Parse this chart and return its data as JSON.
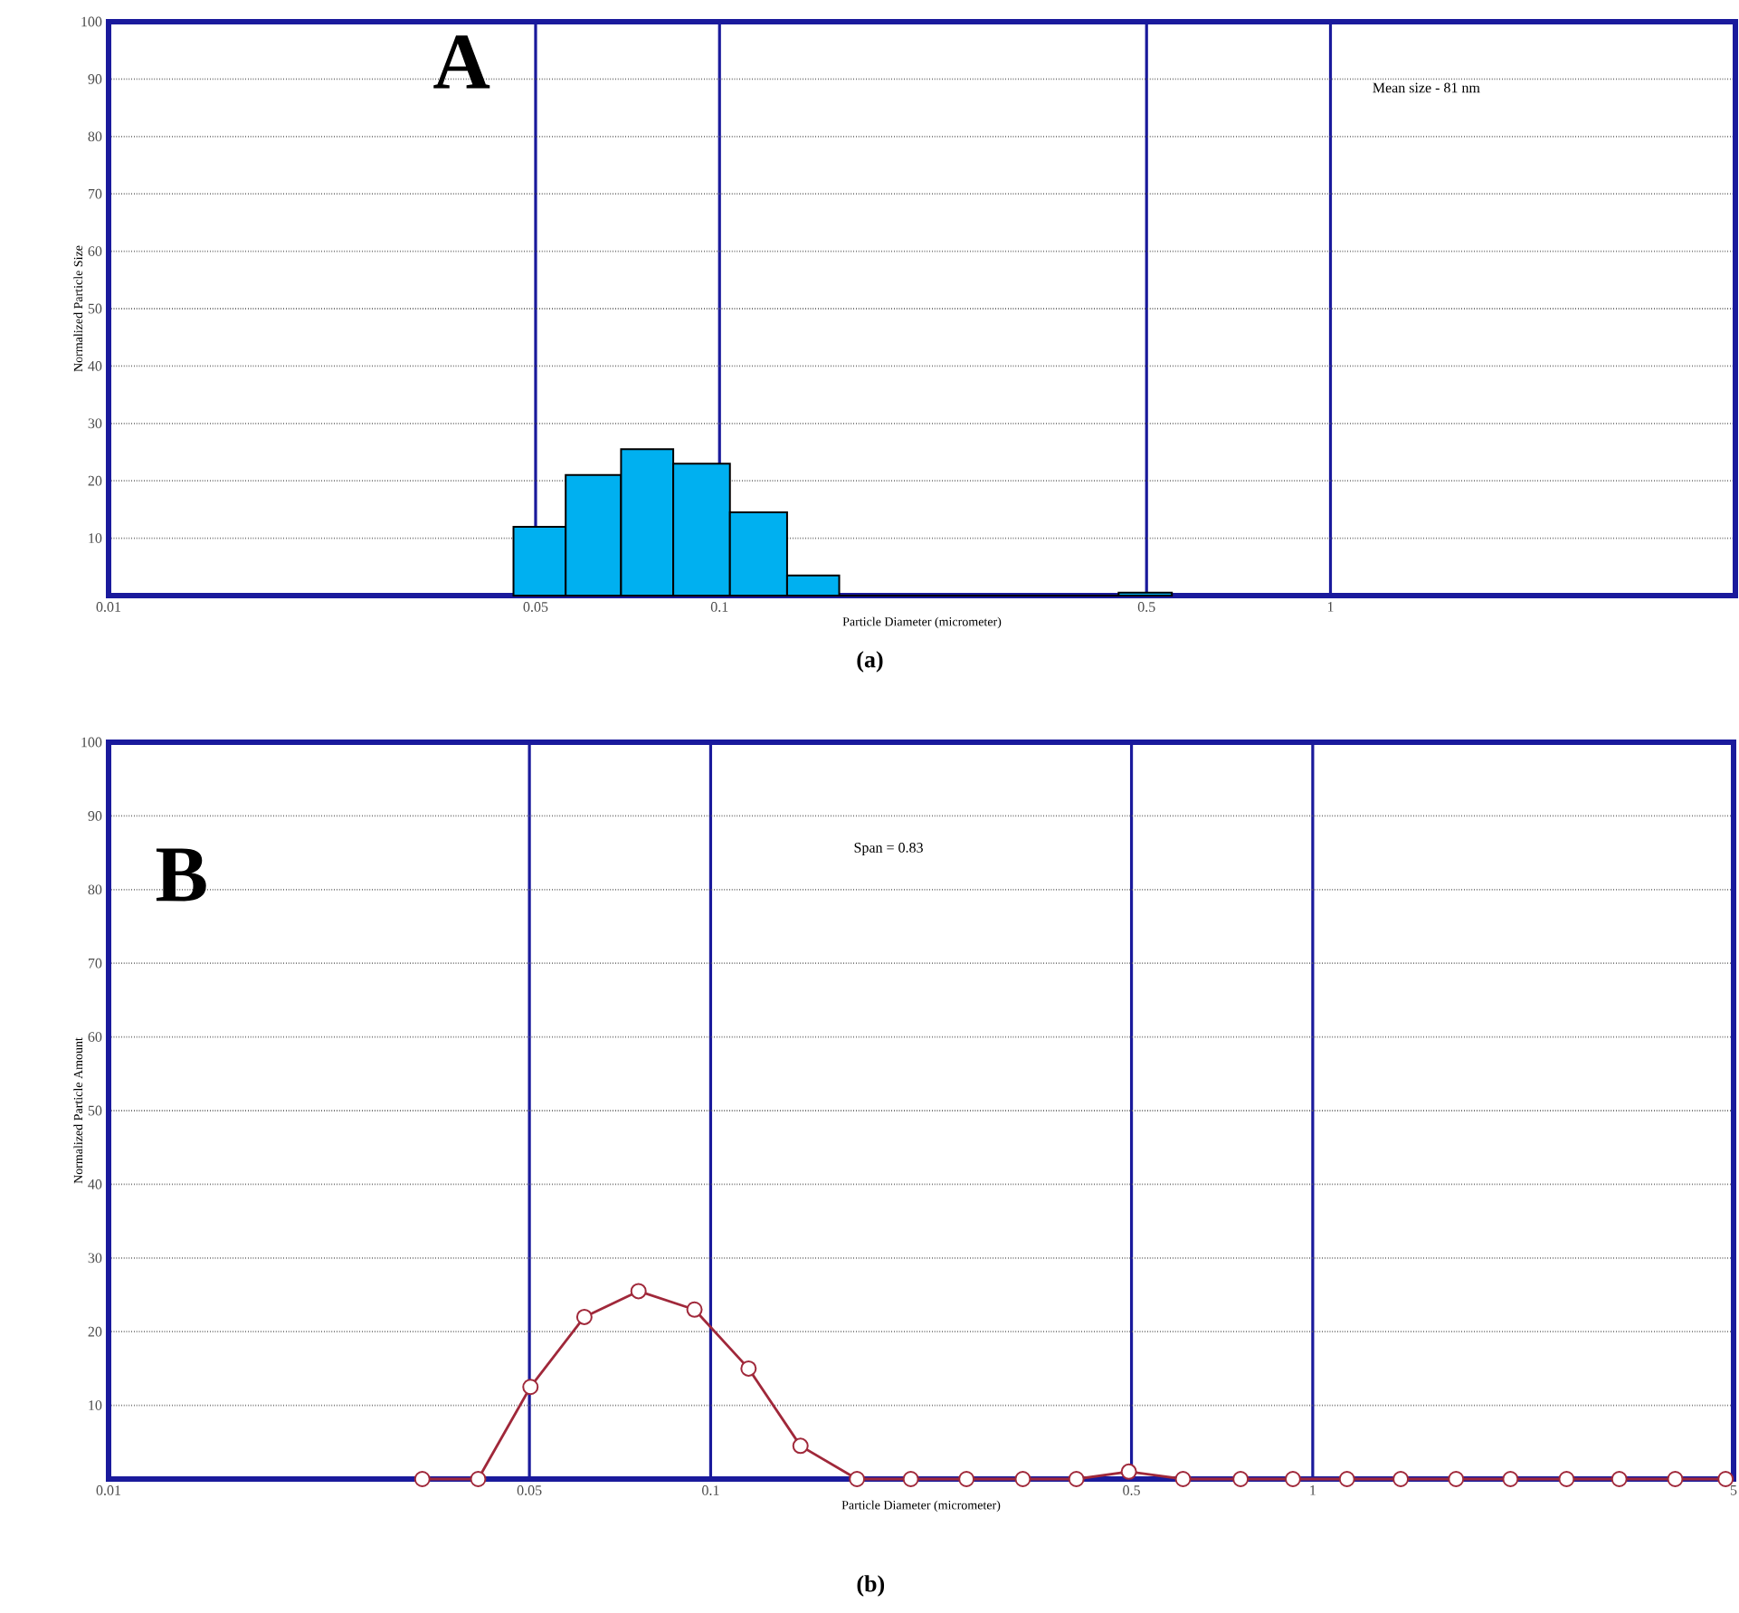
{
  "chart_data": [
    {
      "type": "histogram",
      "bins": [
        0.046,
        0.056,
        0.069,
        0.084,
        0.104,
        0.129,
        0.157,
        0.45,
        0.55
      ],
      "values": [
        12,
        21,
        25.5,
        23,
        14.5,
        3.5,
        0,
        0.5
      ],
      "color": "#00b0f0",
      "xlabel": "Particle Diameter  (micrometer)",
      "ylabel": "Normalized Particle Size",
      "xlim": [
        0.01,
        4.6
      ],
      "xticks": [
        0.01,
        0.05,
        0.1,
        0.5,
        1
      ],
      "ylim": [
        0,
        100
      ],
      "yticks": [
        10,
        20,
        30,
        40,
        50,
        60,
        70,
        80,
        90,
        100
      ],
      "log": "x",
      "grid": true,
      "annotations": [
        "A",
        "Mean size - 81 nm",
        "(a)"
      ]
    },
    {
      "type": "line",
      "color": "#a0283a",
      "marker": "circle",
      "x": [
        0.0332,
        0.0411,
        0.0502,
        0.0617,
        0.0759,
        0.094,
        0.1156,
        0.141,
        0.175,
        0.215,
        0.266,
        0.33,
        0.405,
        0.495,
        0.609,
        0.759,
        0.927,
        1.14,
        1.4,
        1.73,
        2.13,
        2.64,
        3.23,
        4.0,
        4.85
      ],
      "values": [
        0,
        0,
        12.5,
        22,
        25.5,
        23,
        15,
        4.5,
        0,
        0,
        0,
        0,
        0,
        1,
        0,
        0,
        0,
        0,
        0,
        0,
        0,
        0,
        0,
        0,
        0
      ],
      "xlabel": "Particle Diameter  (micrometer)",
      "ylabel": "Normalized Particle Amount",
      "xlim": [
        0.01,
        5
      ],
      "xticks": [
        0.01,
        0.05,
        0.1,
        0.5,
        1,
        5
      ],
      "ylim": [
        0,
        100
      ],
      "yticks": [
        10,
        20,
        30,
        40,
        50,
        60,
        70,
        80,
        90,
        100
      ],
      "log": "x",
      "grid": true,
      "annotations": [
        "B",
        "Span = 0.83",
        "(b)"
      ]
    }
  ]
}
